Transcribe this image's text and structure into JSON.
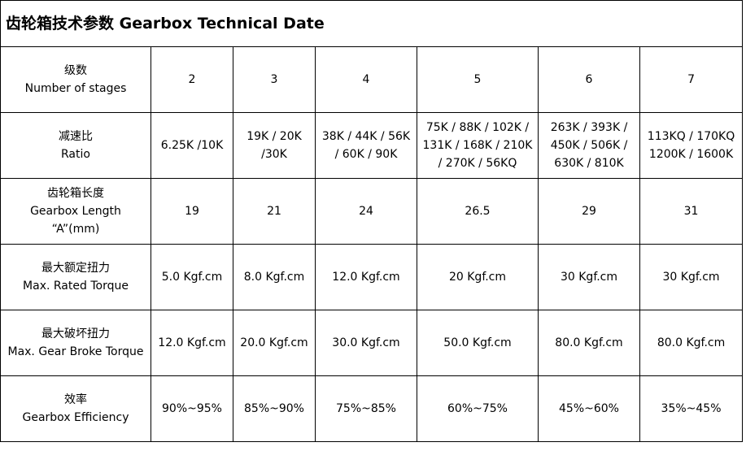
{
  "header": {
    "title": "齿轮箱技术参数 Gearbox Technical Date"
  },
  "table": {
    "rows": [
      {
        "label": [
          "级数",
          "Number of stages"
        ],
        "cells": [
          [
            "2"
          ],
          [
            "3"
          ],
          [
            "4"
          ],
          [
            "5"
          ],
          [
            "6"
          ],
          [
            "7"
          ]
        ]
      },
      {
        "label": [
          "减速比",
          "Ratio"
        ],
        "cells": [
          [
            "6.25K /10K"
          ],
          [
            "19K / 20K",
            "/30K"
          ],
          [
            "38K / 44K / 56K",
            "/ 60K / 90K"
          ],
          [
            "75K / 88K / 102K /",
            "131K / 168K / 210K",
            "/ 270K / 56KQ"
          ],
          [
            "263K / 393K /",
            "450K / 506K /",
            "630K / 810K"
          ],
          [
            "113KQ / 170KQ",
            "1200K / 1600K"
          ]
        ]
      },
      {
        "label": [
          "齿轮箱长度",
          "Gearbox Length",
          "“A”(mm)"
        ],
        "cells": [
          [
            "19"
          ],
          [
            "21"
          ],
          [
            "24"
          ],
          [
            "26.5"
          ],
          [
            "29"
          ],
          [
            "31"
          ]
        ]
      },
      {
        "label": [
          "最大额定扭力",
          "Max. Rated Torque"
        ],
        "cells": [
          [
            "5.0 Kgf.cm"
          ],
          [
            "8.0 Kgf.cm"
          ],
          [
            "12.0 Kgf.cm"
          ],
          [
            "20 Kgf.cm"
          ],
          [
            "30 Kgf.cm"
          ],
          [
            "30 Kgf.cm"
          ]
        ]
      },
      {
        "label": [
          "最大破坏扭力",
          "Max. Gear Broke Torque"
        ],
        "cells": [
          [
            "12.0 Kgf.cm"
          ],
          [
            "20.0 Kgf.cm"
          ],
          [
            "30.0 Kgf.cm"
          ],
          [
            "50.0 Kgf.cm"
          ],
          [
            "80.0 Kgf.cm"
          ],
          [
            "80.0 Kgf.cm"
          ]
        ]
      },
      {
        "label": [
          "效率",
          "Gearbox Efficiency"
        ],
        "cells": [
          [
            "90%~95%"
          ],
          [
            "85%~90%"
          ],
          [
            "75%~85%"
          ],
          [
            "60%~75%"
          ],
          [
            "45%~60%"
          ],
          [
            "35%~45%"
          ]
        ]
      }
    ]
  }
}
